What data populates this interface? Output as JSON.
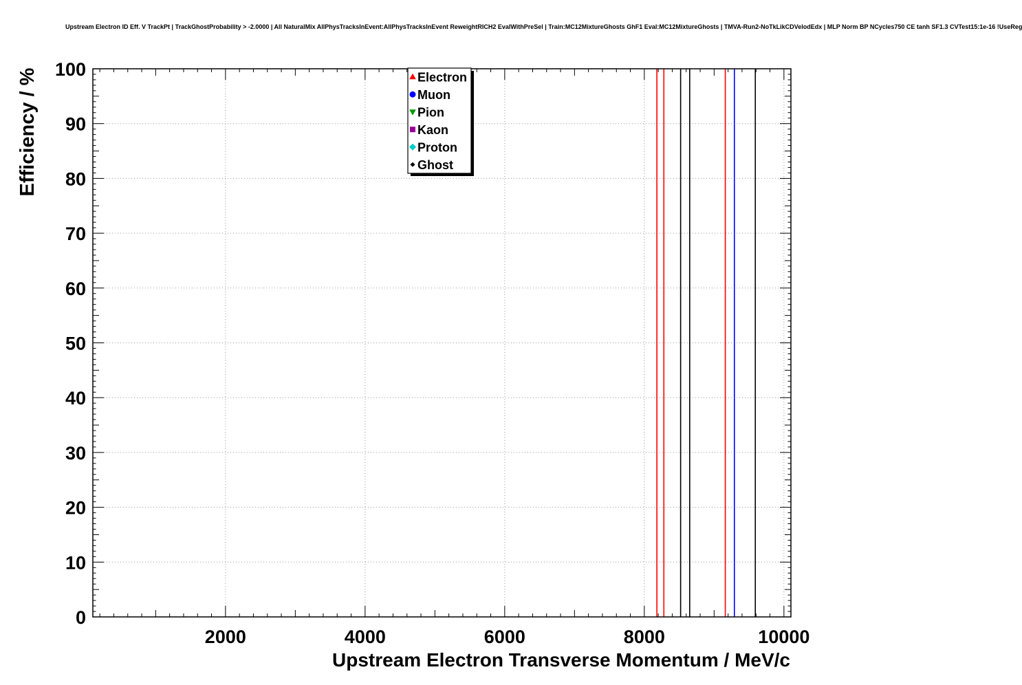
{
  "header": {
    "title": "Upstream Electron ID Eff. V TrackPt | TrackGhostProbability > -2.0000 | All NaturalMix AllPhysTracksInEvent:AllPhysTracksInEvent ReweightRICH2 EvalWithPreSel | Train:MC12MixtureGhosts GhF1 Eval:MC12MixtureGhosts | TMVA-Run2-NoTkLikCDVelodEdx | MLP Norm BP NCycles750 CE tanh SF1.3 CVTest15:1e-16 !UseReg"
  },
  "chart_data": {
    "type": "line",
    "title": "Upstream Electron ID Eff. V TrackPt | TrackGhostProbability > -2.0000 | All NaturalMix AllPhysTracksInEvent:AllPhysTracksInEvent ReweightRICH2 EvalWithPreSel | Train:MC12MixtureGhosts GhF1 Eval:MC12MixtureGhosts | TMVA-Run2-NoTkLikCDVelodEdx | MLP Norm BP NCycles750 CE tanh SF1.3 CVTest15:1e-16 !UseReg",
    "xlabel": "Upstream Electron Transverse Momentum / MeV/c",
    "ylabel": "Efficiency / %",
    "xlim": [
      100,
      10100
    ],
    "ylim": [
      0,
      100
    ],
    "x_major_ticks": [
      2000,
      4000,
      6000,
      8000,
      10000
    ],
    "x_medium_step": 1000,
    "x_minor_step": 200,
    "y_major_ticks": [
      0,
      10,
      20,
      30,
      40,
      50,
      60,
      70,
      80,
      90,
      100
    ],
    "y_medium_step": 5,
    "y_minor_step": 1,
    "grid": true,
    "grid_color": "#999999",
    "frame_color": "#000000",
    "background": "#ffffff",
    "legend_position": "top-center",
    "series": [
      {
        "name": "Electron",
        "color": "#ff0000",
        "marker": "triangle-up",
        "vertical_lines_x": [
          8180,
          8280,
          9160
        ]
      },
      {
        "name": "Muon",
        "color": "#0000ff",
        "marker": "circle",
        "vertical_lines_x": [
          9290
        ]
      },
      {
        "name": "Pion",
        "color": "#009900",
        "marker": "triangle-down",
        "vertical_lines_x": []
      },
      {
        "name": "Kaon",
        "color": "#990099",
        "marker": "square",
        "vertical_lines_x": []
      },
      {
        "name": "Proton",
        "color": "#00cccc",
        "marker": "diamond",
        "vertical_lines_x": []
      },
      {
        "name": "Ghost",
        "color": "#000000",
        "marker": "diamond-small",
        "vertical_lines_x": [
          8520,
          8650,
          9590
        ]
      }
    ]
  }
}
